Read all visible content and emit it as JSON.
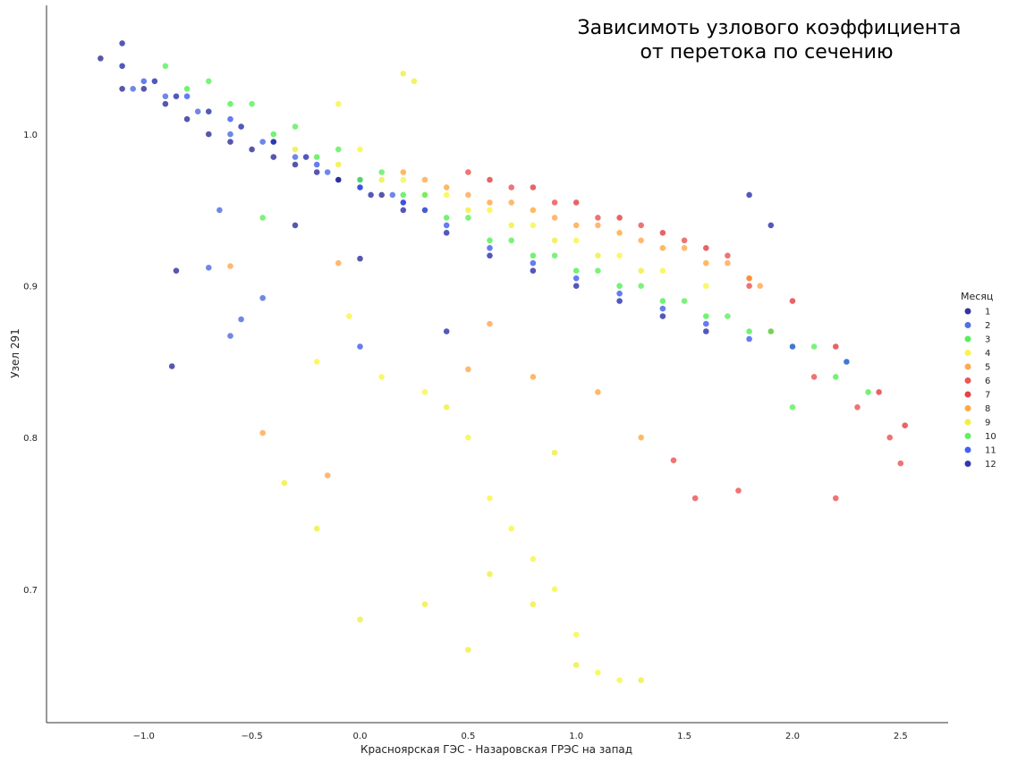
{
  "chart_data": {
    "type": "scatter",
    "title_lines": [
      "Зависимоть узлового коэффициента",
      "от перетока по сечению"
    ],
    "xlabel": "Красноярская ГЭС - Назаровская ГРЭС на запад",
    "ylabel": "Узел 291",
    "xlim": [
      -1.45,
      2.72
    ],
    "ylim": [
      0.612,
      1.085
    ],
    "xticks": [
      -1.0,
      -0.5,
      0.0,
      0.5,
      1.0,
      1.5,
      2.0,
      2.5
    ],
    "xtick_labels": [
      "−1.0",
      "−0.5",
      "0.0",
      "0.5",
      "1.0",
      "1.5",
      "2.0",
      "2.5"
    ],
    "yticks": [
      0.7,
      0.8,
      0.9,
      1.0
    ],
    "ytick_labels": [
      "0.7",
      "0.8",
      "0.9",
      "1.0"
    ],
    "grid": false,
    "legend_title": "Месяц",
    "legend_position": "right",
    "series": [
      {
        "name": "1",
        "color": "#1f1f8f",
        "points": [
          [
            -1.2,
            1.05
          ],
          [
            -1.1,
            1.03
          ],
          [
            -1.0,
            1.03
          ],
          [
            -0.9,
            1.02
          ],
          [
            -0.8,
            1.01
          ],
          [
            -0.7,
            1.0
          ],
          [
            -0.6,
            0.995
          ],
          [
            -0.5,
            0.99
          ],
          [
            -0.4,
            0.985
          ],
          [
            -0.3,
            0.98
          ],
          [
            -0.2,
            0.975
          ],
          [
            -0.1,
            0.97
          ],
          [
            0.0,
            0.965
          ],
          [
            0.1,
            0.96
          ],
          [
            0.2,
            0.955
          ],
          [
            0.3,
            0.95
          ],
          [
            -0.85,
            0.91
          ],
          [
            -0.87,
            0.847
          ],
          [
            -0.3,
            0.94
          ],
          [
            0.0,
            0.918
          ]
        ]
      },
      {
        "name": "2",
        "color": "#3f5fe0",
        "points": [
          [
            -1.05,
            1.03
          ],
          [
            -0.9,
            1.025
          ],
          [
            -0.75,
            1.015
          ],
          [
            -0.6,
            1.0
          ],
          [
            -0.45,
            0.995
          ],
          [
            -0.3,
            0.985
          ],
          [
            -0.15,
            0.975
          ],
          [
            0.0,
            0.97
          ],
          [
            0.15,
            0.96
          ],
          [
            0.3,
            0.95
          ],
          [
            -0.65,
            0.95
          ],
          [
            -0.6,
            0.867
          ],
          [
            -0.55,
            0.878
          ],
          [
            -0.45,
            0.892
          ],
          [
            -0.7,
            0.912
          ]
        ]
      },
      {
        "name": "3",
        "color": "#44ee44",
        "points": [
          [
            -0.8,
            1.03
          ],
          [
            -0.6,
            1.02
          ],
          [
            -0.4,
            1.0
          ],
          [
            -0.2,
            0.985
          ],
          [
            0.0,
            0.97
          ],
          [
            0.2,
            0.96
          ],
          [
            0.4,
            0.945
          ],
          [
            0.6,
            0.93
          ],
          [
            0.8,
            0.92
          ],
          [
            1.0,
            0.91
          ],
          [
            1.2,
            0.9
          ],
          [
            1.4,
            0.89
          ],
          [
            1.6,
            0.88
          ],
          [
            1.8,
            0.87
          ],
          [
            2.0,
            0.86
          ],
          [
            2.2,
            0.84
          ],
          [
            2.35,
            0.83
          ]
        ]
      },
      {
        "name": "4",
        "color": "#f5f535",
        "points": [
          [
            -0.1,
            1.02
          ],
          [
            0.0,
            0.99
          ],
          [
            0.2,
            0.97
          ],
          [
            0.4,
            0.96
          ],
          [
            0.6,
            0.95
          ],
          [
            0.8,
            0.94
          ],
          [
            1.0,
            0.93
          ],
          [
            1.2,
            0.92
          ],
          [
            1.4,
            0.91
          ],
          [
            1.6,
            0.9
          ],
          [
            -0.2,
            0.85
          ],
          [
            -0.05,
            0.88
          ],
          [
            0.1,
            0.84
          ],
          [
            0.3,
            0.83
          ],
          [
            0.5,
            0.8
          ],
          [
            0.6,
            0.76
          ],
          [
            0.7,
            0.74
          ],
          [
            0.8,
            0.72
          ],
          [
            0.9,
            0.7
          ],
          [
            1.0,
            0.67
          ],
          [
            1.1,
            0.645
          ],
          [
            1.2,
            0.64
          ]
        ]
      },
      {
        "name": "5",
        "color": "#ffa040",
        "points": [
          [
            0.3,
            0.97
          ],
          [
            0.5,
            0.96
          ],
          [
            0.7,
            0.955
          ],
          [
            0.9,
            0.945
          ],
          [
            1.1,
            0.94
          ],
          [
            1.3,
            0.93
          ],
          [
            1.5,
            0.925
          ],
          [
            1.7,
            0.915
          ],
          [
            1.85,
            0.9
          ],
          [
            -0.6,
            0.913
          ],
          [
            -0.1,
            0.915
          ],
          [
            0.6,
            0.875
          ],
          [
            -0.45,
            0.803
          ],
          [
            -0.15,
            0.775
          ],
          [
            0.5,
            0.845
          ]
        ]
      },
      {
        "name": "6",
        "color": "#e84545",
        "points": [
          [
            0.5,
            0.975
          ],
          [
            0.7,
            0.965
          ],
          [
            0.9,
            0.955
          ],
          [
            1.1,
            0.945
          ],
          [
            1.3,
            0.94
          ],
          [
            1.5,
            0.93
          ],
          [
            1.7,
            0.92
          ],
          [
            1.8,
            0.9
          ],
          [
            1.9,
            0.87
          ],
          [
            2.1,
            0.84
          ],
          [
            2.3,
            0.82
          ],
          [
            2.45,
            0.8
          ],
          [
            2.5,
            0.783
          ],
          [
            1.55,
            0.76
          ],
          [
            1.75,
            0.765
          ],
          [
            2.2,
            0.76
          ],
          [
            1.45,
            0.785
          ]
        ]
      },
      {
        "name": "7",
        "color": "#e03030",
        "points": [
          [
            0.6,
            0.97
          ],
          [
            0.8,
            0.965
          ],
          [
            1.0,
            0.955
          ],
          [
            1.2,
            0.945
          ],
          [
            1.4,
            0.935
          ],
          [
            1.6,
            0.925
          ],
          [
            1.8,
            0.905
          ],
          [
            2.0,
            0.89
          ],
          [
            2.2,
            0.86
          ],
          [
            2.4,
            0.83
          ],
          [
            2.52,
            0.808
          ]
        ]
      },
      {
        "name": "8",
        "color": "#ffa030",
        "points": [
          [
            0.2,
            0.975
          ],
          [
            0.4,
            0.965
          ],
          [
            0.6,
            0.955
          ],
          [
            0.8,
            0.95
          ],
          [
            1.0,
            0.94
          ],
          [
            1.2,
            0.935
          ],
          [
            1.4,
            0.925
          ],
          [
            1.6,
            0.915
          ],
          [
            1.8,
            0.905
          ],
          [
            0.8,
            0.84
          ],
          [
            1.1,
            0.83
          ],
          [
            1.3,
            0.8
          ]
        ]
      },
      {
        "name": "9",
        "color": "#eeee30",
        "points": [
          [
            -0.3,
            0.99
          ],
          [
            -0.1,
            0.98
          ],
          [
            0.1,
            0.97
          ],
          [
            0.3,
            0.96
          ],
          [
            0.5,
            0.95
          ],
          [
            0.7,
            0.94
          ],
          [
            0.9,
            0.93
          ],
          [
            1.1,
            0.92
          ],
          [
            1.3,
            0.91
          ],
          [
            0.2,
            1.04
          ],
          [
            0.25,
            1.035
          ],
          [
            -0.35,
            0.77
          ],
          [
            -0.2,
            0.74
          ],
          [
            0.0,
            0.68
          ],
          [
            0.3,
            0.69
          ],
          [
            0.5,
            0.66
          ],
          [
            0.8,
            0.69
          ],
          [
            1.0,
            0.65
          ],
          [
            1.3,
            0.64
          ],
          [
            0.6,
            0.71
          ],
          [
            0.9,
            0.79
          ],
          [
            0.4,
            0.82
          ]
        ]
      },
      {
        "name": "10",
        "color": "#50ee50",
        "points": [
          [
            -0.9,
            1.045
          ],
          [
            -0.7,
            1.035
          ],
          [
            -0.5,
            1.02
          ],
          [
            -0.3,
            1.005
          ],
          [
            -0.1,
            0.99
          ],
          [
            0.1,
            0.975
          ],
          [
            0.3,
            0.96
          ],
          [
            0.5,
            0.945
          ],
          [
            0.7,
            0.93
          ],
          [
            0.9,
            0.92
          ],
          [
            1.1,
            0.91
          ],
          [
            1.3,
            0.9
          ],
          [
            1.5,
            0.89
          ],
          [
            1.7,
            0.88
          ],
          [
            1.9,
            0.87
          ],
          [
            2.1,
            0.86
          ],
          [
            2.25,
            0.85
          ],
          [
            -0.45,
            0.945
          ],
          [
            2.0,
            0.82
          ]
        ]
      },
      {
        "name": "11",
        "color": "#3050f0",
        "points": [
          [
            -1.0,
            1.035
          ],
          [
            -0.8,
            1.025
          ],
          [
            -0.6,
            1.01
          ],
          [
            -0.4,
            0.995
          ],
          [
            -0.2,
            0.98
          ],
          [
            0.0,
            0.965
          ],
          [
            0.2,
            0.955
          ],
          [
            0.4,
            0.94
          ],
          [
            0.6,
            0.925
          ],
          [
            0.8,
            0.915
          ],
          [
            1.0,
            0.905
          ],
          [
            1.2,
            0.895
          ],
          [
            1.4,
            0.885
          ],
          [
            1.6,
            0.875
          ],
          [
            1.8,
            0.865
          ],
          [
            2.0,
            0.86
          ],
          [
            2.25,
            0.85
          ],
          [
            0.0,
            0.86
          ]
        ]
      },
      {
        "name": "12",
        "color": "#1a22a0",
        "points": [
          [
            -1.1,
            1.06
          ],
          [
            -1.1,
            1.045
          ],
          [
            -0.95,
            1.035
          ],
          [
            -0.85,
            1.025
          ],
          [
            -0.7,
            1.015
          ],
          [
            -0.55,
            1.005
          ],
          [
            -0.4,
            0.995
          ],
          [
            -0.25,
            0.985
          ],
          [
            -0.1,
            0.97
          ],
          [
            0.05,
            0.96
          ],
          [
            0.2,
            0.95
          ],
          [
            0.4,
            0.935
          ],
          [
            0.6,
            0.92
          ],
          [
            0.8,
            0.91
          ],
          [
            1.0,
            0.9
          ],
          [
            1.2,
            0.89
          ],
          [
            1.4,
            0.88
          ],
          [
            1.6,
            0.87
          ],
          [
            1.8,
            0.96
          ],
          [
            1.9,
            0.94
          ],
          [
            0.4,
            0.87
          ]
        ]
      }
    ]
  }
}
